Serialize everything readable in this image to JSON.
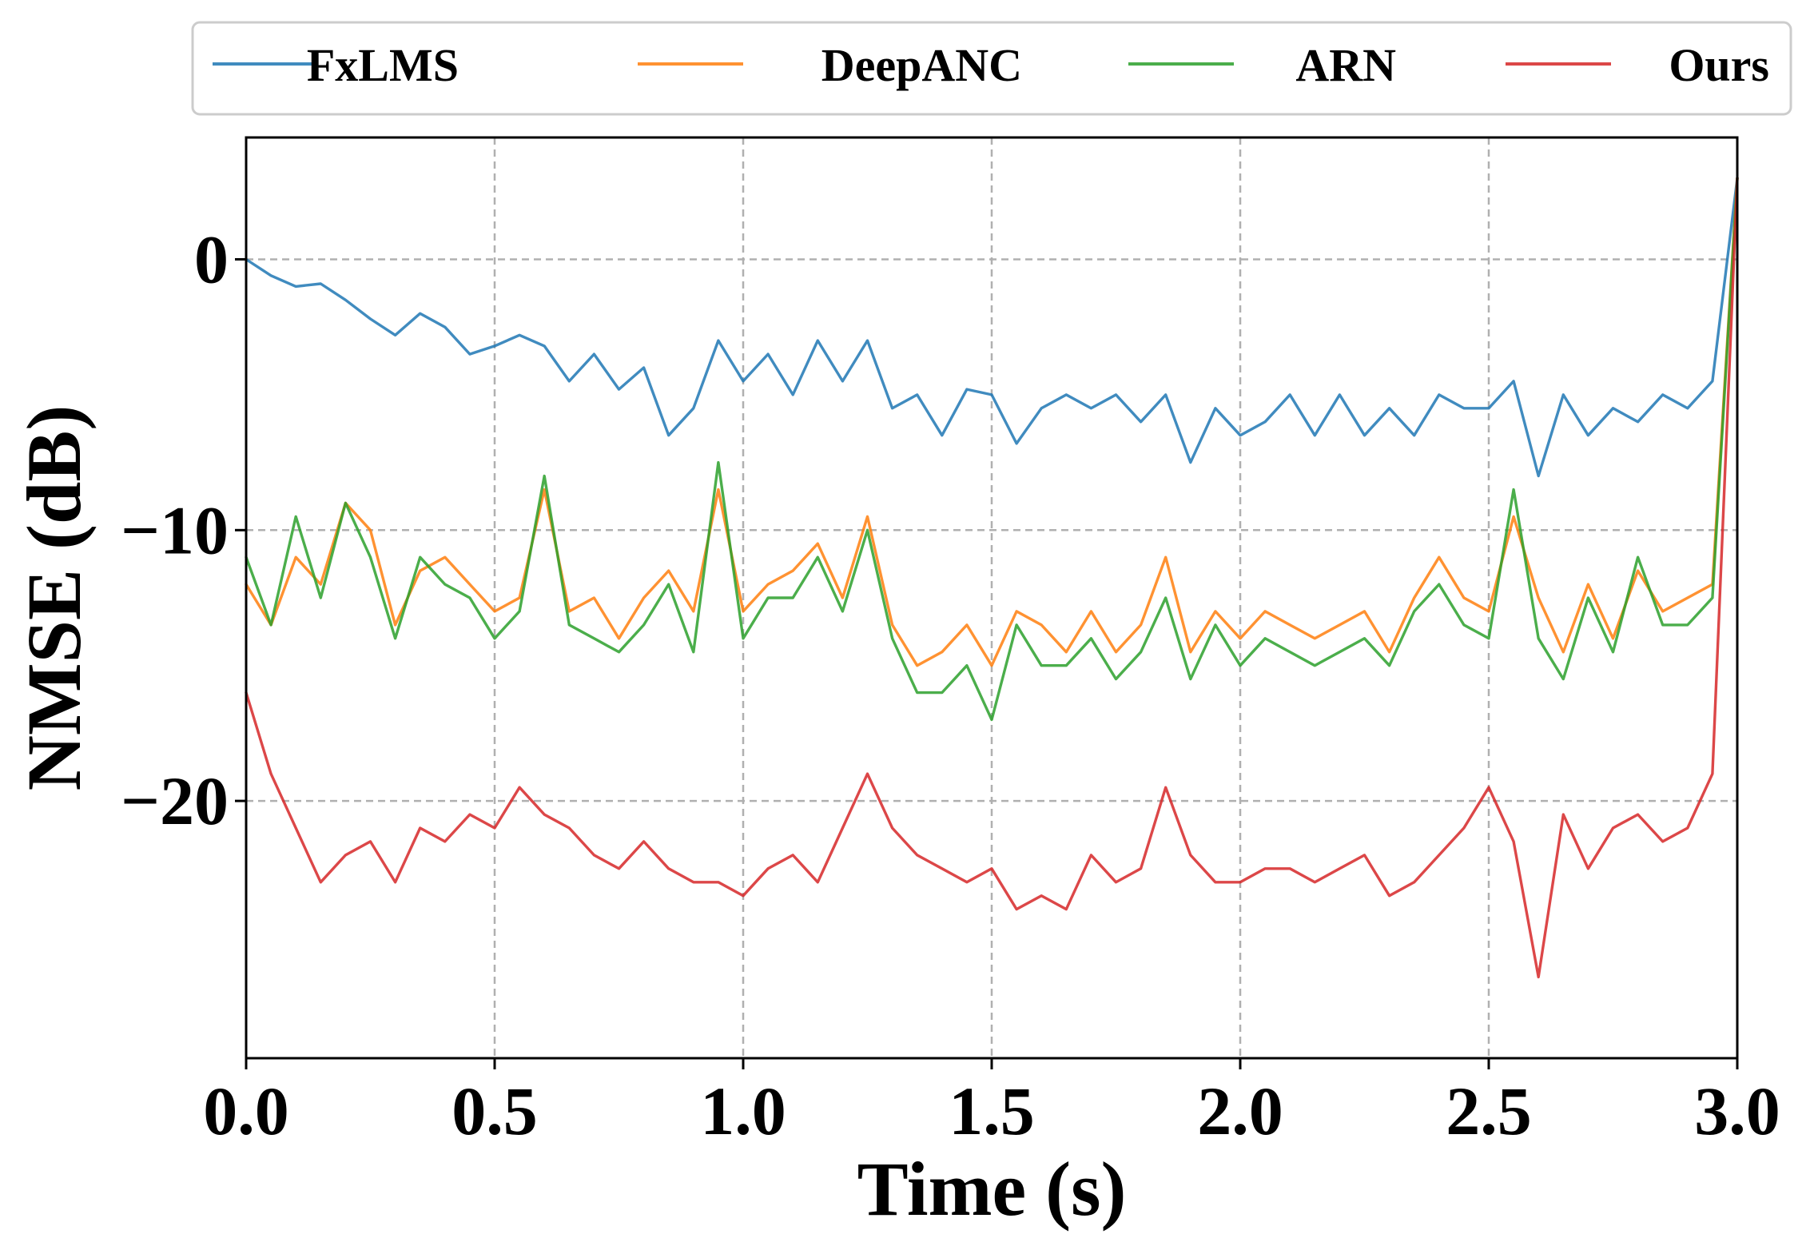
{
  "chart_data": {
    "type": "line",
    "title": "",
    "xlabel": "Time (s)",
    "ylabel": "NMSE (dB)",
    "xlim": [
      0,
      3
    ],
    "ylim": [
      -29.5,
      4.5
    ],
    "x_ticks": [
      0.0,
      0.5,
      1.0,
      1.5,
      2.0,
      2.5,
      3.0
    ],
    "x_tick_labels": [
      "0.0",
      "0.5",
      "1.0",
      "1.5",
      "2.0",
      "2.5",
      "3.0"
    ],
    "y_ticks": [
      0,
      -10,
      -20
    ],
    "y_tick_labels": [
      "0",
      "−10",
      "−20"
    ],
    "grid": true,
    "legend_position": "top",
    "x": [
      0.0,
      0.05,
      0.1,
      0.15,
      0.2,
      0.25,
      0.3,
      0.35,
      0.4,
      0.45,
      0.5,
      0.55,
      0.6,
      0.65,
      0.7,
      0.75,
      0.8,
      0.85,
      0.9,
      0.95,
      1.0,
      1.05,
      1.1,
      1.15,
      1.2,
      1.25,
      1.3,
      1.35,
      1.4,
      1.45,
      1.5,
      1.55,
      1.6,
      1.65,
      1.7,
      1.75,
      1.8,
      1.85,
      1.9,
      1.95,
      2.0,
      2.05,
      2.1,
      2.15,
      2.2,
      2.25,
      2.3,
      2.35,
      2.4,
      2.45,
      2.5,
      2.55,
      2.6,
      2.65,
      2.7,
      2.75,
      2.8,
      2.85,
      2.9,
      2.95,
      3.0
    ],
    "series": [
      {
        "name": "FxLMS",
        "color": "#1f77b4",
        "values": [
          0.0,
          -0.6,
          -1.0,
          -0.9,
          -1.5,
          -2.2,
          -2.8,
          -2.0,
          -2.5,
          -3.5,
          -3.2,
          -2.8,
          -3.2,
          -4.5,
          -3.5,
          -4.8,
          -4.0,
          -6.5,
          -5.5,
          -3.0,
          -4.5,
          -3.5,
          -5.0,
          -3.0,
          -4.5,
          -3.0,
          -5.5,
          -5.0,
          -6.5,
          -4.8,
          -5.0,
          -6.8,
          -5.5,
          -5.0,
          -5.5,
          -5.0,
          -6.0,
          -5.0,
          -7.5,
          -5.5,
          -6.5,
          -6.0,
          -5.0,
          -6.5,
          -5.0,
          -6.5,
          -5.5,
          -6.5,
          -5.0,
          -5.5,
          -5.5,
          -4.5,
          -8.0,
          -5.0,
          -6.5,
          -5.5,
          -6.0,
          -5.0,
          -5.5,
          -4.5,
          3.0
        ]
      },
      {
        "name": "DeepANC",
        "color": "#ff7f0e",
        "values": [
          -12.0,
          -13.5,
          -11.0,
          -12.0,
          -9.0,
          -10.0,
          -13.5,
          -11.5,
          -11.0,
          -12.0,
          -13.0,
          -12.5,
          -8.5,
          -13.0,
          -12.5,
          -14.0,
          -12.5,
          -11.5,
          -13.0,
          -8.5,
          -13.0,
          -12.0,
          -11.5,
          -10.5,
          -12.5,
          -9.5,
          -13.5,
          -15.0,
          -14.5,
          -13.5,
          -15.0,
          -13.0,
          -13.5,
          -14.5,
          -13.0,
          -14.5,
          -13.5,
          -11.0,
          -14.5,
          -13.0,
          -14.0,
          -13.0,
          -13.5,
          -14.0,
          -13.5,
          -13.0,
          -14.5,
          -12.5,
          -11.0,
          -12.5,
          -13.0,
          -9.5,
          -12.5,
          -14.5,
          -12.0,
          -14.0,
          -11.5,
          -13.0,
          -12.5,
          -12.0,
          3.0
        ]
      },
      {
        "name": "ARN",
        "color": "#2ca02c",
        "values": [
          -11.0,
          -13.5,
          -9.5,
          -12.5,
          -9.0,
          -11.0,
          -14.0,
          -11.0,
          -12.0,
          -12.5,
          -14.0,
          -13.0,
          -8.0,
          -13.5,
          -14.0,
          -14.5,
          -13.5,
          -12.0,
          -14.5,
          -7.5,
          -14.0,
          -12.5,
          -12.5,
          -11.0,
          -13.0,
          -10.0,
          -14.0,
          -16.0,
          -16.0,
          -15.0,
          -17.0,
          -13.5,
          -15.0,
          -15.0,
          -14.0,
          -15.5,
          -14.5,
          -12.5,
          -15.5,
          -13.5,
          -15.0,
          -14.0,
          -14.5,
          -15.0,
          -14.5,
          -14.0,
          -15.0,
          -13.0,
          -12.0,
          -13.5,
          -14.0,
          -8.5,
          -14.0,
          -15.5,
          -12.5,
          -14.5,
          -11.0,
          -13.5,
          -13.5,
          -12.5,
          3.0
        ]
      },
      {
        "name": "Ours",
        "color": "#d62728",
        "values": [
          -16.0,
          -19.0,
          -21.0,
          -23.0,
          -22.0,
          -21.5,
          -23.0,
          -21.0,
          -21.5,
          -20.5,
          -21.0,
          -19.5,
          -20.5,
          -21.0,
          -22.0,
          -22.5,
          -21.5,
          -22.5,
          -23.0,
          -23.0,
          -23.5,
          -22.5,
          -22.0,
          -23.0,
          -21.0,
          -19.0,
          -21.0,
          -22.0,
          -22.5,
          -23.0,
          -22.5,
          -24.0,
          -23.5,
          -24.0,
          -22.0,
          -23.0,
          -22.5,
          -19.5,
          -22.0,
          -23.0,
          -23.0,
          -22.5,
          -22.5,
          -23.0,
          -22.5,
          -22.0,
          -23.5,
          -23.0,
          -22.0,
          -21.0,
          -19.5,
          -21.5,
          -26.5,
          -20.5,
          -22.5,
          -21.0,
          -20.5,
          -21.5,
          -21.0,
          -19.0,
          3.0
        ]
      }
    ]
  }
}
